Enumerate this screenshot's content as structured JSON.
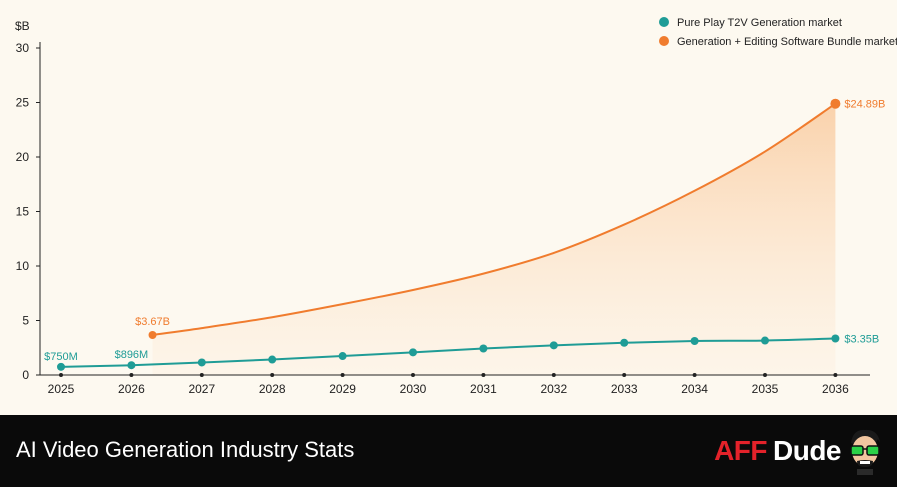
{
  "chart_data": {
    "type": "line",
    "title": "",
    "xlabel": "",
    "ylabel": "$B",
    "ylim": [
      0,
      30
    ],
    "yticks": [
      0,
      5,
      10,
      15,
      20,
      25,
      30
    ],
    "x_categories": [
      "2025",
      "2026",
      "2027",
      "2028",
      "2029",
      "2030",
      "2031",
      "2032",
      "2033",
      "2034",
      "2035",
      "2036"
    ],
    "legend_position": "top-right",
    "grid": false,
    "series": [
      {
        "name": "Pure Play T2V Generation market",
        "color": "#1f9c96",
        "x": [
          2025.0,
          2026.0,
          2027.0,
          2028.0,
          2029.0,
          2030.0,
          2031.0,
          2032.0,
          2033.0,
          2034.0,
          2035.0,
          2036.0
        ],
        "values": [
          0.75,
          0.896,
          1.15,
          1.42,
          1.74,
          2.08,
          2.43,
          2.72,
          2.96,
          3.12,
          3.16,
          3.35
        ],
        "annotations": [
          {
            "index": 0,
            "text": "$750M"
          },
          {
            "index": 1,
            "text": "$896M"
          },
          {
            "index": 11,
            "text": "$3.35B"
          }
        ]
      },
      {
        "name": "Generation + Editing Software Bundle market",
        "color": "#f07c2e",
        "x": [
          2026.3,
          2027.0,
          2028.0,
          2029.0,
          2030.0,
          2031.0,
          2032.0,
          2033.0,
          2034.0,
          2035.0,
          2036.0
        ],
        "values": [
          3.67,
          4.3,
          5.3,
          6.5,
          7.8,
          9.3,
          11.2,
          13.8,
          16.9,
          20.5,
          24.89
        ],
        "markers": [
          0,
          10
        ],
        "fill_area": true,
        "annotations": [
          {
            "index": 0,
            "text": "$3.67B"
          },
          {
            "index": 10,
            "text": "$24.89B"
          }
        ]
      }
    ]
  },
  "footer": {
    "title": "AI Video Generation Industry Stats",
    "brand_aff": "AFF",
    "brand_dude": "Dude"
  },
  "colors": {
    "background": "#fdf9f0",
    "footer_bg": "#0a0a0a",
    "brand_red": "#e3222a"
  }
}
